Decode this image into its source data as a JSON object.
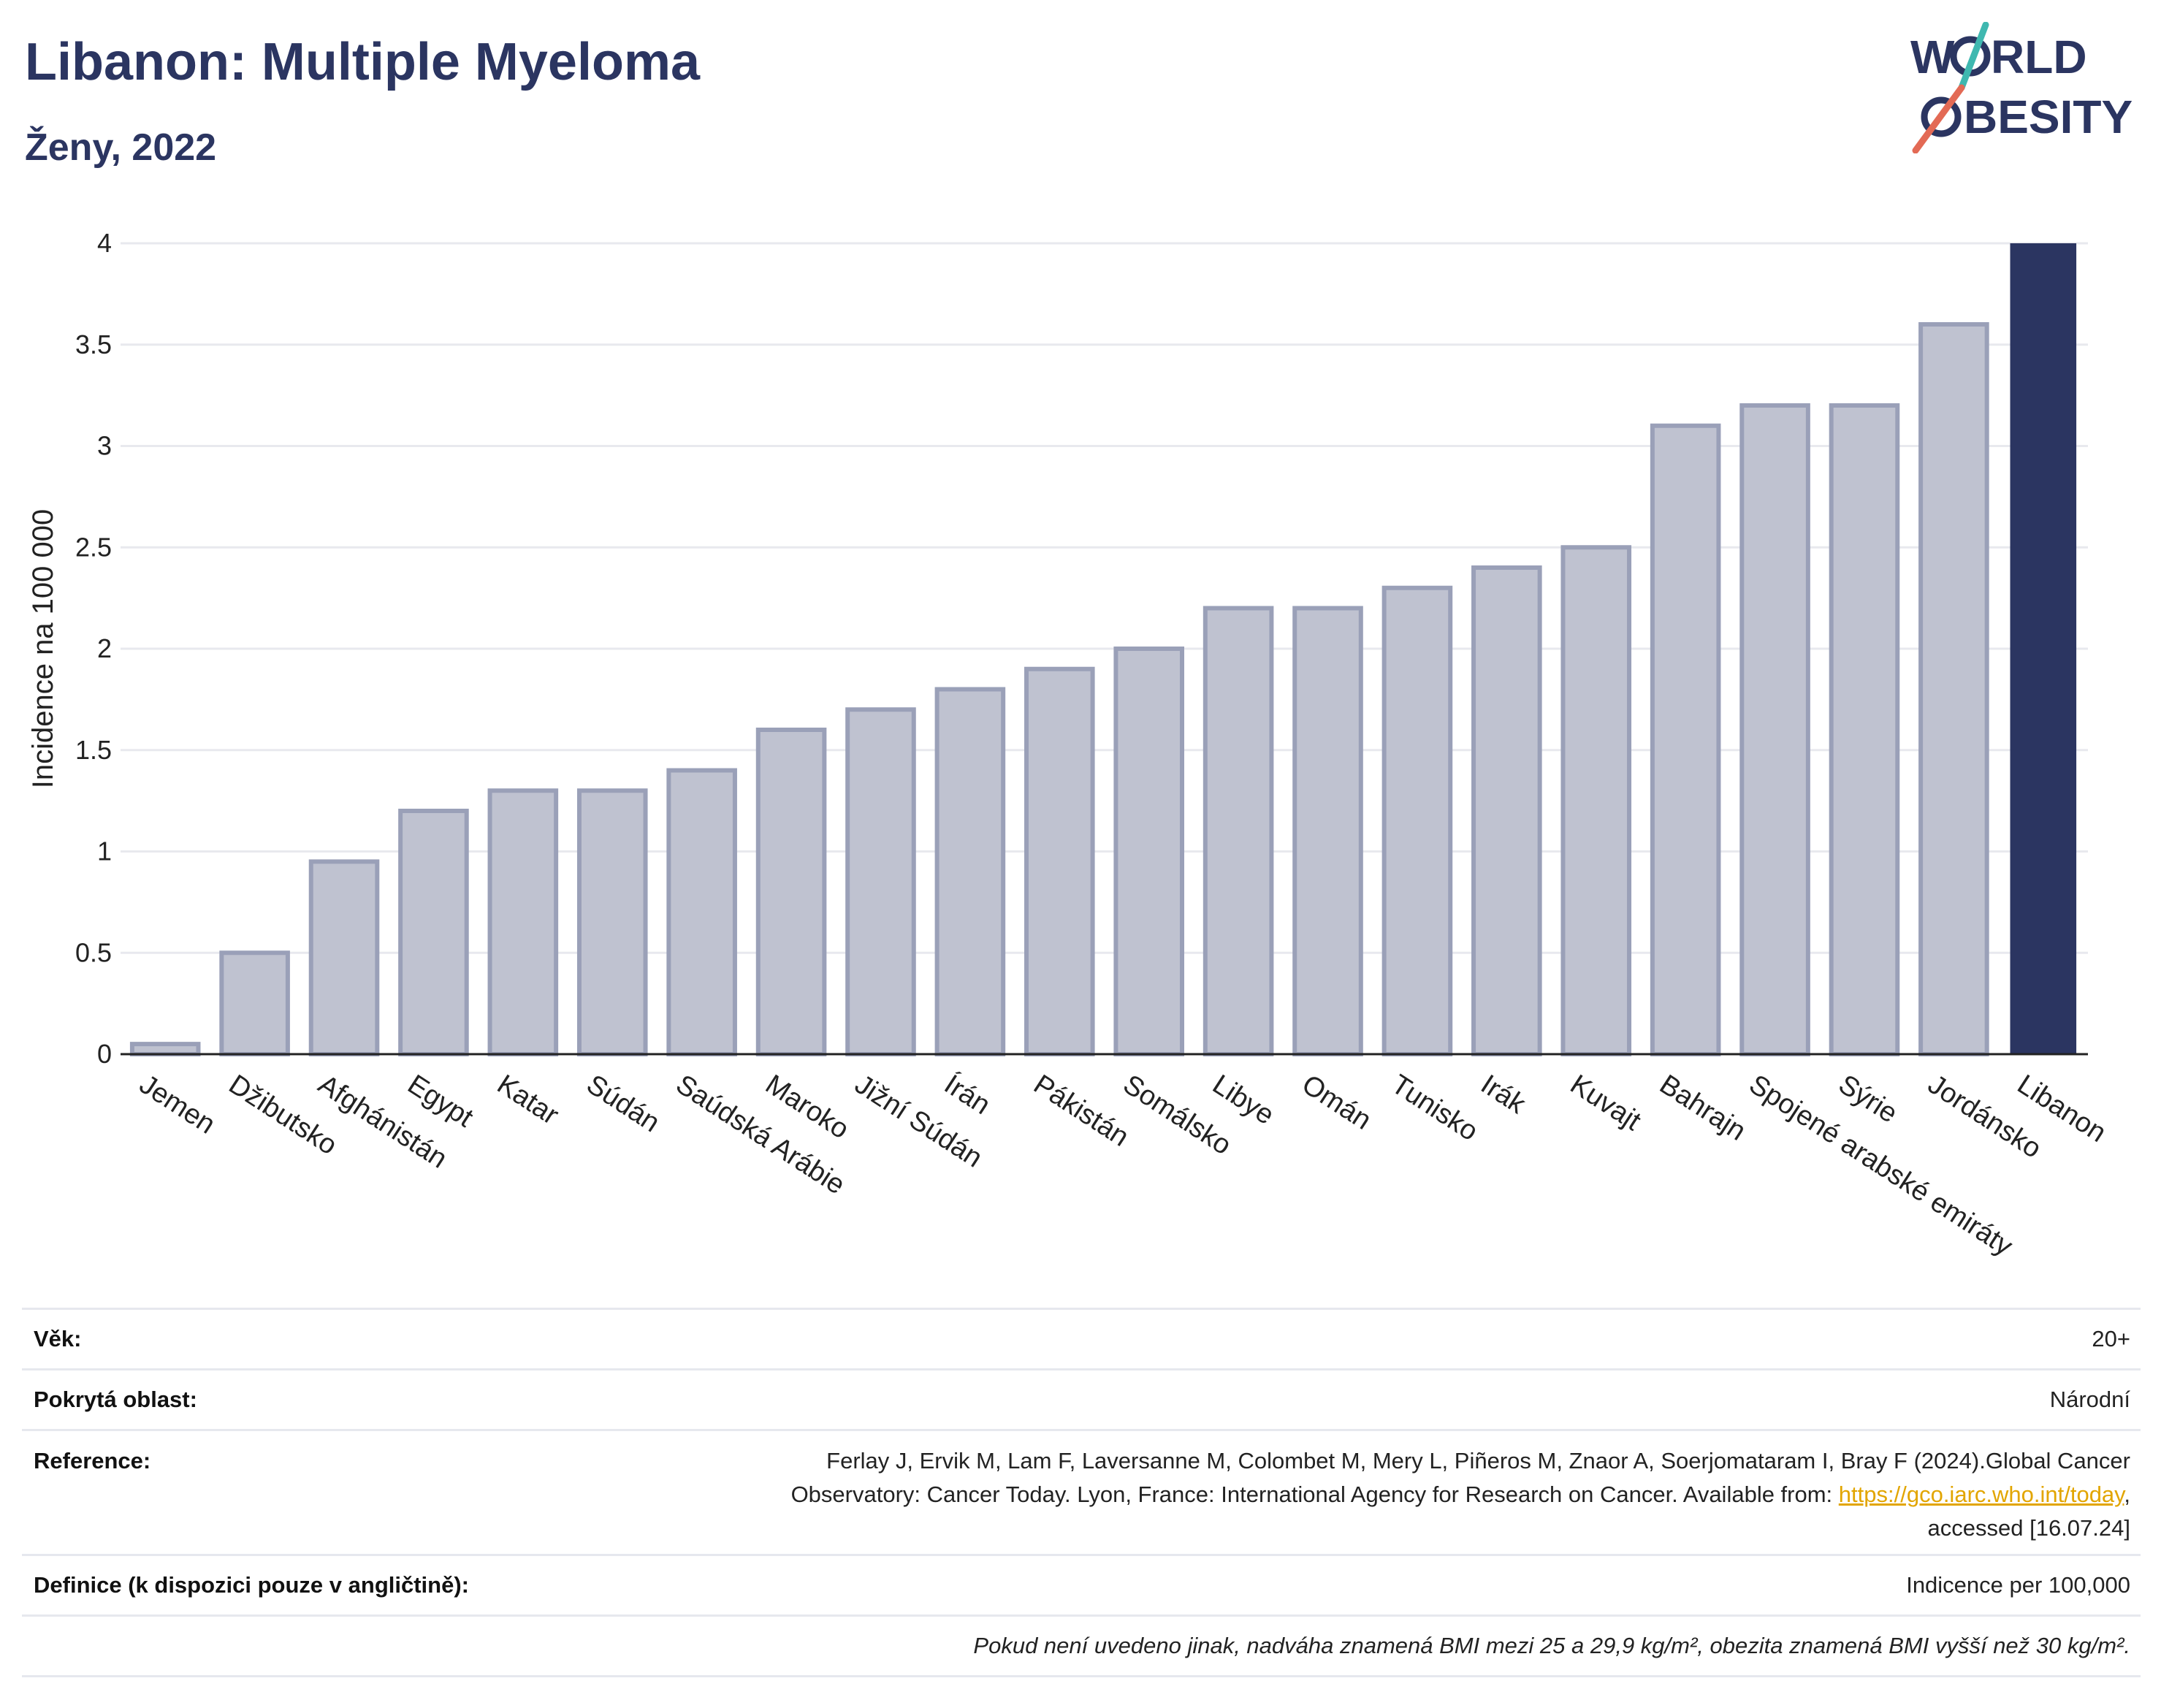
{
  "header": {
    "title": "Libanon: Multiple Myeloma",
    "subtitle": "Ženy, 2022"
  },
  "logo": {
    "line1": "W",
    "line1b": "RLD",
    "line2": "BESITY"
  },
  "chart_data": {
    "type": "bar",
    "title": "Libanon: Multiple Myeloma",
    "subtitle": "Ženy, 2022",
    "xlabel": "",
    "ylabel": "Incidence na 100 000",
    "ylim": [
      0,
      4
    ],
    "yticks": [
      0,
      0.5,
      1,
      1.5,
      2,
      2.5,
      3,
      3.5,
      4
    ],
    "grid": true,
    "categories": [
      "Jemen",
      "Džibutsko",
      "Afghánistán",
      "Egypt",
      "Katar",
      "Súdán",
      "Saúdská Arábie",
      "Maroko",
      "Jižní Súdán",
      "Írán",
      "Pákistán",
      "Somálsko",
      "Libye",
      "Omán",
      "Tunisko",
      "Irák",
      "Kuvajt",
      "Bahrajn",
      "Spojené arabské emiráty",
      "Sýrie",
      "Jordánsko",
      "Libanon"
    ],
    "values": [
      0.05,
      0.5,
      0.95,
      1.2,
      1.3,
      1.3,
      1.4,
      1.6,
      1.7,
      1.8,
      1.9,
      2.0,
      2.2,
      2.2,
      2.3,
      2.4,
      2.5,
      3.1,
      3.2,
      3.2,
      3.6,
      4.0
    ],
    "highlight": "Libanon",
    "colors": {
      "bar": "#bfc2d0",
      "bar_border": "#9aa0b8",
      "highlight": "#2b3561",
      "grid": "#e8e9ee"
    }
  },
  "info": {
    "age_label": "Věk:",
    "age_value": "20+",
    "area_label": "Pokrytá oblast:",
    "area_value": "Národní",
    "reference_label": "Reference:",
    "reference_line1": "Ferlay J, Ervik M, Lam F, Laversanne M, Colombet M, Mery L, Piñeros M, Znaor A, Soerjomataram I, Bray F (2024).Global Cancer",
    "reference_line2": "Observatory: Cancer Today. Lyon, France: International Agency for Research on Cancer. Available from: ",
    "reference_link": "https://gco.iarc.who.int/today",
    "reference_line2_end": ",",
    "reference_line3": "accessed [16.07.24]",
    "definition_label": "Definice (k dispozici pouze v angličtině):",
    "definition_value": "Indicence per 100,000",
    "note": "Pokud není uvedeno jinak, nadváha znamená BMI mezi 25 a 29,9 kg/m², obezita znamená BMI vyšší než 30 kg/m²."
  }
}
